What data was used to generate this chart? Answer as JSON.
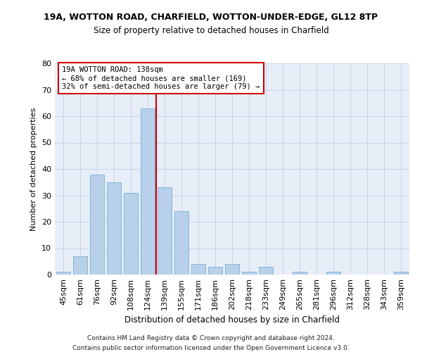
{
  "title": "19A, WOTTON ROAD, CHARFIELD, WOTTON-UNDER-EDGE, GL12 8TP",
  "subtitle": "Size of property relative to detached houses in Charfield",
  "xlabel": "Distribution of detached houses by size in Charfield",
  "ylabel": "Number of detached properties",
  "footnote1": "Contains HM Land Registry data © Crown copyright and database right 2024.",
  "footnote2": "Contains public sector information licensed under the Open Government Licence v3.0.",
  "categories": [
    "45sqm",
    "61sqm",
    "76sqm",
    "92sqm",
    "108sqm",
    "124sqm",
    "139sqm",
    "155sqm",
    "171sqm",
    "186sqm",
    "202sqm",
    "218sqm",
    "233sqm",
    "249sqm",
    "265sqm",
    "281sqm",
    "296sqm",
    "312sqm",
    "328sqm",
    "343sqm",
    "359sqm"
  ],
  "values": [
    1,
    7,
    38,
    35,
    31,
    63,
    33,
    24,
    4,
    3,
    4,
    1,
    3,
    0,
    1,
    0,
    1,
    0,
    0,
    0,
    1
  ],
  "bar_color": "#b8d0ea",
  "bar_edge_color": "#7aafd4",
  "annotation_line1": "19A WOTTON ROAD: 138sqm",
  "annotation_line2": "← 68% of detached houses are smaller (169)",
  "annotation_line3": "32% of semi-detached houses are larger (79) →",
  "annotation_box_facecolor": "#ffffff",
  "annotation_box_edgecolor": "#cc0000",
  "vline_color": "#cc0000",
  "vline_x": 5.5,
  "ylim": [
    0,
    80
  ],
  "yticks": [
    0,
    10,
    20,
    30,
    40,
    50,
    60,
    70,
    80
  ],
  "grid_color": "#c8d4e8",
  "background_color": "#e8eef8",
  "title_fontsize": 9,
  "subtitle_fontsize": 8.5,
  "ylabel_fontsize": 8,
  "xlabel_fontsize": 8.5,
  "tick_fontsize": 8,
  "annotation_fontsize": 7.5,
  "footnote_fontsize": 6.5
}
